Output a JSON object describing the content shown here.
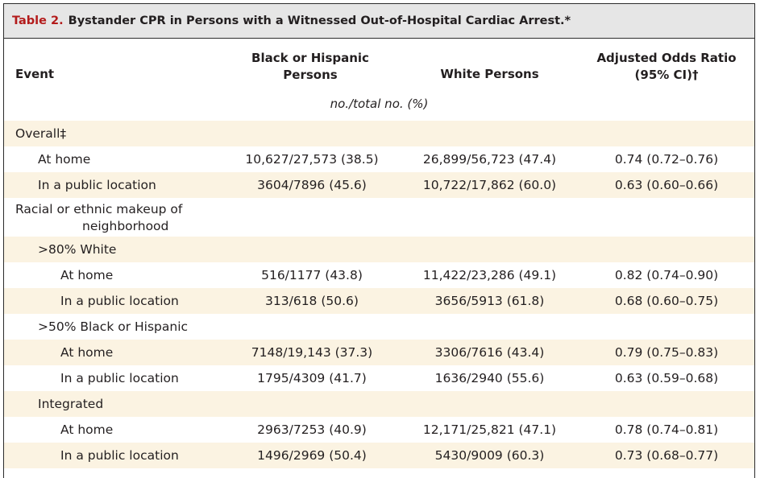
{
  "table": {
    "label": "Table 2.",
    "title": "Bystander CPR in Persons with a Witnessed Out-of-Hospital Cardiac Arrest.*",
    "headers": {
      "event": "Event",
      "col1_line1": "Black or Hispanic",
      "col1_line2": "Persons",
      "col2": "White Persons",
      "col3_line1": "Adjusted Odds Ratio",
      "col3_line2": "(95% CI)†"
    },
    "units": "no./total no. (%)",
    "rows": [
      {
        "event": "Overall‡",
        "c1": "",
        "c2": "",
        "c3": ""
      },
      {
        "event": "At home",
        "c1": "10,627/27,573 (38.5)",
        "c2": "26,899/56,723 (47.4)",
        "c3": "0.74 (0.72–0.76)"
      },
      {
        "event": "In a public location",
        "c1": "3604/7896 (45.6)",
        "c2": "10,722/17,862 (60.0)",
        "c3": "0.63 (0.60–0.66)"
      },
      {
        "event_line1": "Racial or ethnic makeup of",
        "event_line2": "neighborhood"
      },
      {
        "event": ">80% White",
        "c1": "",
        "c2": "",
        "c3": ""
      },
      {
        "event": "At home",
        "c1": "516/1177 (43.8)",
        "c2": "11,422/23,286 (49.1)",
        "c3": "0.82 (0.74–0.90)"
      },
      {
        "event": "In a public location",
        "c1": "313/618 (50.6)",
        "c2": "3656/5913 (61.8)",
        "c3": "0.68 (0.60–0.75)"
      },
      {
        "event": ">50% Black or Hispanic",
        "c1": "",
        "c2": "",
        "c3": ""
      },
      {
        "event": "At home",
        "c1": "7148/19,143 (37.3)",
        "c2": "3306/7616 (43.4)",
        "c3": "0.79 (0.75–0.83)"
      },
      {
        "event": "In a public location",
        "c1": "1795/4309 (41.7)",
        "c2": "1636/2940 (55.6)",
        "c3": "0.63 (0.59–0.68)"
      },
      {
        "event": "Integrated",
        "c1": "",
        "c2": "",
        "c3": ""
      },
      {
        "event": "At home",
        "c1": "2963/7253 (40.9)",
        "c2": "12,171/25,821 (47.1)",
        "c3": "0.78 (0.74–0.81)"
      },
      {
        "event": "In a public location",
        "c1": "1496/2969 (50.4)",
        "c2": "5430/9009 (60.3)",
        "c3": "0.73 (0.68–0.77)"
      }
    ]
  }
}
